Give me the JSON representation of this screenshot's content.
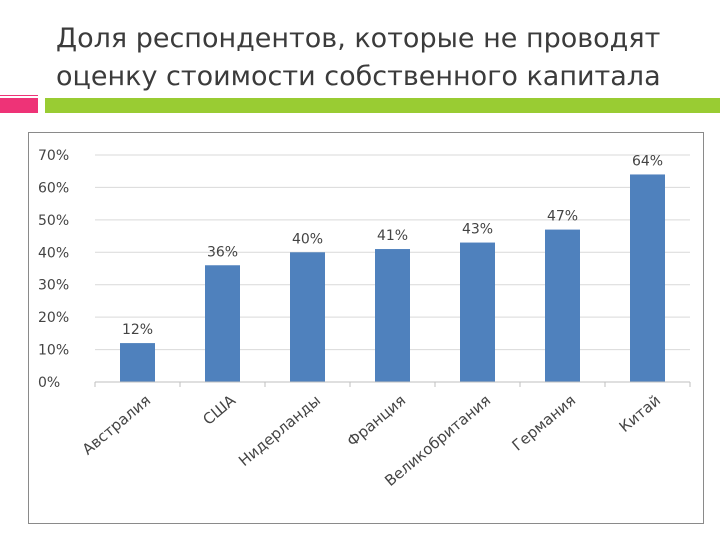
{
  "slide": {
    "title_line1": "Доля респондентов, которые не проводят",
    "title_line2": "оценку стоимости собственного капитала"
  },
  "colors": {
    "bar": "#4f81bd",
    "accent_green": "#99cc33",
    "accent_pink": "#ee3377"
  },
  "chart_data": {
    "type": "bar",
    "title": "",
    "xlabel": "",
    "ylabel": "",
    "categories": [
      "Австралия",
      "США",
      "Нидерланды",
      "Франция",
      "Великобритания",
      "Германия",
      "Китай"
    ],
    "values": [
      12,
      36,
      40,
      41,
      43,
      47,
      64
    ],
    "data_labels": [
      "12%",
      "36%",
      "40%",
      "41%",
      "43%",
      "47%",
      "64%"
    ],
    "ylim": [
      0,
      70
    ],
    "yticks": [
      0,
      10,
      20,
      30,
      40,
      50,
      60,
      70
    ],
    "ytick_labels": [
      "0%",
      "10%",
      "20%",
      "30%",
      "40%",
      "50%",
      "60%",
      "70%"
    ],
    "grid": true,
    "legend": "none"
  }
}
